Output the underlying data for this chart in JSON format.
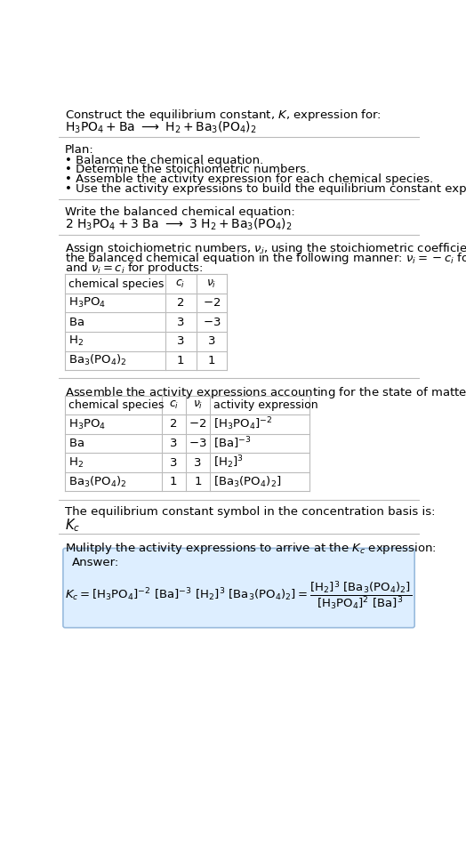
{
  "title_line1": "Construct the equilibrium constant, $K$, expression for:",
  "title_line2": "$\\mathrm{H_3PO_4 + Ba\\ \\longrightarrow\\ H_2 + Ba_3(PO_4)_2}$",
  "plan_header": "Plan:",
  "plan_items": [
    "• Balance the chemical equation.",
    "• Determine the stoichiometric numbers.",
    "• Assemble the activity expression for each chemical species.",
    "• Use the activity expressions to build the equilibrium constant expression."
  ],
  "balanced_eq_header": "Write the balanced chemical equation:",
  "balanced_eq": "$\\mathrm{2\\ H_3PO_4 + 3\\ Ba\\ \\longrightarrow\\ 3\\ H_2 + Ba_3(PO_4)_2}$",
  "stoich_lines": [
    "Assign stoichiometric numbers, $\\nu_i$, using the stoichiometric coefficients, $c_i$, from",
    "the balanced chemical equation in the following manner: $\\nu_i = -c_i$ for reactants",
    "and $\\nu_i = c_i$ for products:"
  ],
  "table1_headers": [
    "chemical species",
    "$c_i$",
    "$\\nu_i$"
  ],
  "table1_rows": [
    [
      "$\\mathrm{H_3PO_4}$",
      "2",
      "$-2$"
    ],
    [
      "$\\mathrm{Ba}$",
      "3",
      "$-3$"
    ],
    [
      "$\\mathrm{H_2}$",
      "3",
      "3"
    ],
    [
      "$\\mathrm{Ba_3(PO_4)_2}$",
      "1",
      "1"
    ]
  ],
  "activity_header": "Assemble the activity expressions accounting for the state of matter and $\\nu_i$:",
  "table2_headers": [
    "chemical species",
    "$c_i$",
    "$\\nu_i$",
    "activity expression"
  ],
  "table2_rows": [
    [
      "$\\mathrm{H_3PO_4}$",
      "2",
      "$-2$",
      "$[\\mathrm{H_3PO_4}]^{-2}$"
    ],
    [
      "$\\mathrm{Ba}$",
      "3",
      "$-3$",
      "$[\\mathrm{Ba}]^{-3}$"
    ],
    [
      "$\\mathrm{H_2}$",
      "3",
      "3",
      "$[\\mathrm{H_2}]^3$"
    ],
    [
      "$\\mathrm{Ba_3(PO_4)_2}$",
      "1",
      "1",
      "$[\\mathrm{Ba_3(PO_4)_2}]$"
    ]
  ],
  "kc_header": "The equilibrium constant symbol in the concentration basis is:",
  "kc_symbol": "$K_c$",
  "multiply_header": "Mulitply the activity expressions to arrive at the $K_c$ expression:",
  "answer_label": "Answer:",
  "answer_expr": "$K_c = [\\mathrm{H_3PO_4}]^{-2}\\ [\\mathrm{Ba}]^{-3}\\ [\\mathrm{H_2}]^3\\ [\\mathrm{Ba_3(PO_4)_2}] = \\dfrac{[\\mathrm{H_2}]^3\\ [\\mathrm{Ba_3(PO_4)_2}]}{[\\mathrm{H_3PO_4}]^2\\ [\\mathrm{Ba}]^3}$",
  "bg_color": "#ffffff",
  "line_color": "#bbbbbb",
  "answer_bg_color": "#ddeeff",
  "answer_border_color": "#99bbdd",
  "text_color": "#000000",
  "fs": 9.5
}
